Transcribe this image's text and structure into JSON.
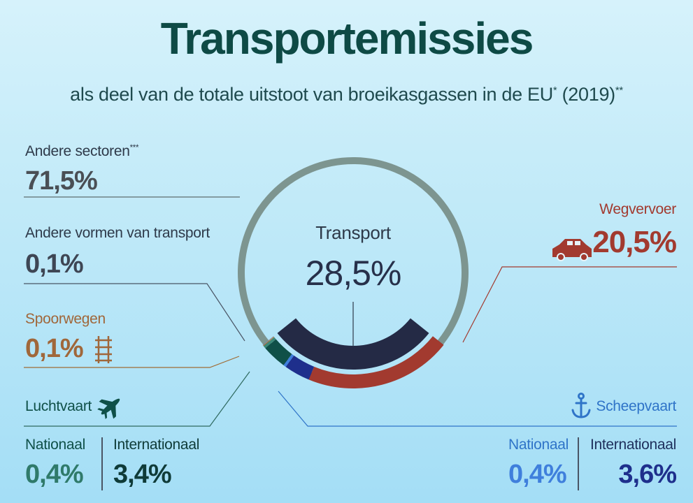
{
  "header": {
    "title": "Transportemissies",
    "subtitle": "als deel van de totale uitstoot van broeikasgassen in de EU",
    "subtitle_mark": "*",
    "year": "(2019)",
    "year_mark": "**"
  },
  "center": {
    "label": "Transport",
    "value": "28,5%"
  },
  "labels": {
    "andere_sectoren": {
      "label": "Andere sectoren",
      "mark": "***",
      "value": "71,5%"
    },
    "andere_transport": {
      "label": "Andere vormen van transport",
      "value": "0,1%"
    },
    "spoorwegen": {
      "label": "Spoorwegen",
      "value": "0,1%"
    },
    "wegvervoer": {
      "label": "Wegvervoer",
      "value": "20,5%"
    },
    "luchtvaart": {
      "label": "Luchtvaart",
      "nationaal_label": "Nationaal",
      "nationaal_value": "0,4%",
      "internationaal_label": "Internationaal",
      "internationaal_value": "3,4%"
    },
    "scheepvaart": {
      "label": "Scheepvaart",
      "nationaal_label": "Nationaal",
      "nationaal_value": "0,4%",
      "internationaal_label": "Internationaal",
      "internationaal_value": "3,6%"
    }
  },
  "colors": {
    "andere_sectoren": "#7d9590",
    "transport": "#242a45",
    "wegvervoer": "#a23a2f",
    "scheepvaart_internationaal": "#1e2f8c",
    "scheepvaart_nationaal": "#3f7fdc",
    "luchtvaart_internationaal": "#0f5048",
    "luchtvaart_nationaal": "#3c8878",
    "spoorwegen": "#b87a35",
    "andere_transport": "#8b96a6"
  },
  "chart_data": {
    "type": "pie",
    "title": "Transportemissies",
    "subtitle": "als deel van de totale uitstoot van broeikasgassen in de EU* (2019)**",
    "total_split": [
      {
        "name": "Andere sectoren",
        "value": 71.5
      },
      {
        "name": "Transport",
        "value": 28.5
      }
    ],
    "transport_breakdown": [
      {
        "name": "Wegvervoer",
        "value": 20.5
      },
      {
        "name": "Scheepvaart Internationaal",
        "value": 3.6
      },
      {
        "name": "Scheepvaart Nationaal",
        "value": 0.4
      },
      {
        "name": "Luchtvaart Internationaal",
        "value": 3.4
      },
      {
        "name": "Luchtvaart Nationaal",
        "value": 0.4
      },
      {
        "name": "Spoorwegen",
        "value": 0.1
      },
      {
        "name": "Andere vormen van transport",
        "value": 0.1
      }
    ]
  }
}
